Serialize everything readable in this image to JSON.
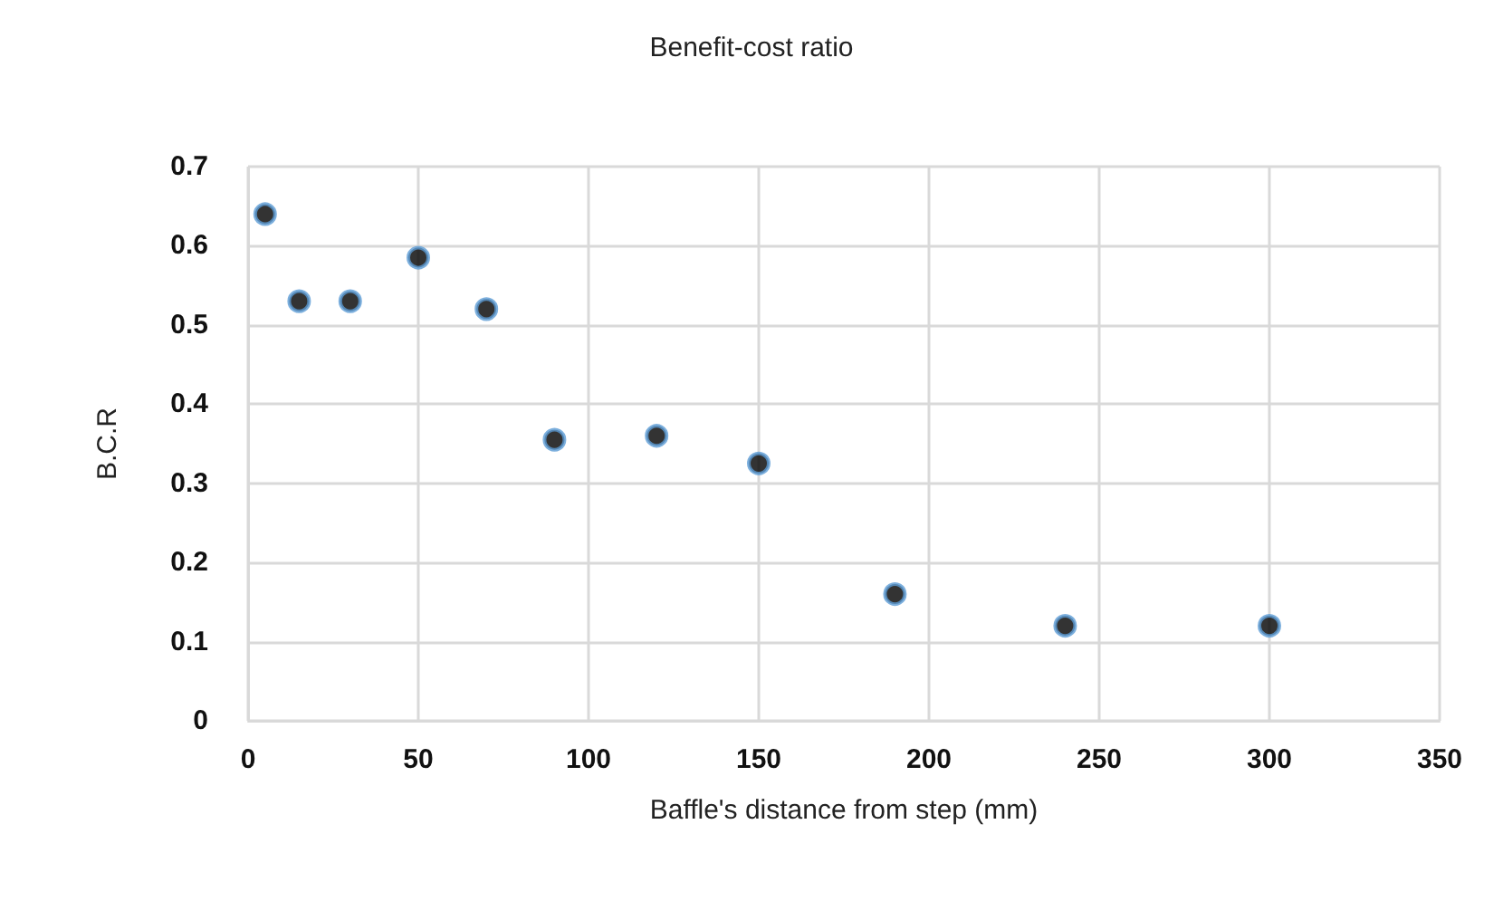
{
  "chart_data": {
    "type": "scatter",
    "title": "Benefit-cost ratio",
    "xlabel": "Baffle's distance from step (mm)",
    "ylabel": "B.C.R",
    "x": [
      5,
      15,
      30,
      50,
      70,
      90,
      120,
      150,
      190,
      240,
      300
    ],
    "series": [
      {
        "color": "#000000",
        "values": [
          0.64,
          0.53,
          0.53,
          0.585,
          0.52,
          0.355,
          0.36,
          0.325,
          0.16,
          0.12,
          0.12
        ]
      }
    ],
    "xlim": [
      0,
      350
    ],
    "xticks": [
      0,
      50,
      100,
      150,
      200,
      250,
      300,
      350
    ],
    "ylim": [
      0,
      0.7
    ],
    "yticks": [
      0,
      0.1,
      0.2,
      0.3,
      0.4,
      0.5,
      0.6,
      0.7
    ],
    "grid": true,
    "marker": "circle"
  }
}
